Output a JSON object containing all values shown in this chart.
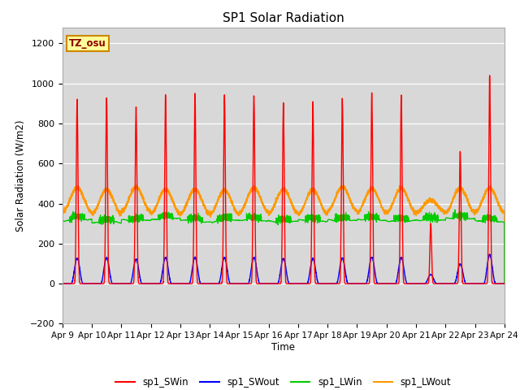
{
  "title": "SP1 Solar Radiation",
  "ylabel": "Solar Radiation (W/m2)",
  "xlabel": "Time",
  "xlim": [
    0,
    15
  ],
  "ylim": [
    -200,
    1280
  ],
  "yticks": [
    -200,
    0,
    200,
    400,
    600,
    800,
    1000,
    1200
  ],
  "xtick_labels": [
    "Apr 9",
    "Apr 10",
    "Apr 11",
    "Apr 12",
    "Apr 13",
    "Apr 14",
    "Apr 15",
    "Apr 16",
    "Apr 17",
    "Apr 18",
    "Apr 19",
    "Apr 20",
    "Apr 21",
    "Apr 22",
    "Apr 23",
    "Apr 24"
  ],
  "colors": {
    "sp1_SWin": "#ff0000",
    "sp1_SWout": "#0000ff",
    "sp1_LWin": "#00cc00",
    "sp1_LWout": "#ff9900"
  },
  "bg_color": "#d8d8d8",
  "annotation_text": "TZ_osu",
  "annotation_bg": "#ffff99",
  "annotation_border": "#cc8800",
  "sw_peaks": [
    920,
    930,
    880,
    940,
    950,
    940,
    940,
    900,
    910,
    920,
    950,
    940,
    300,
    660,
    1040
  ],
  "legend_entries": [
    "sp1_SWin",
    "sp1_SWout",
    "sp1_LWin",
    "sp1_LWout"
  ]
}
